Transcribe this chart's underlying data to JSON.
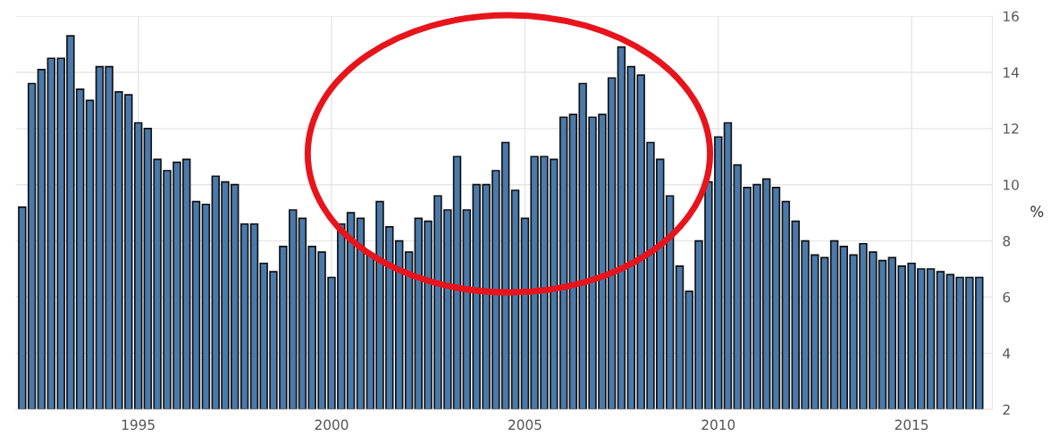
{
  "chart_data": {
    "type": "bar",
    "x": [
      "1992-01",
      "1992-04",
      "1992-07",
      "1992-10",
      "1993-01",
      "1993-04",
      "1993-07",
      "1993-10",
      "1994-01",
      "1994-04",
      "1994-07",
      "1994-10",
      "1995-01",
      "1995-04",
      "1995-07",
      "1995-10",
      "1996-01",
      "1996-04",
      "1996-07",
      "1996-10",
      "1997-01",
      "1997-04",
      "1997-07",
      "1997-10",
      "1998-01",
      "1998-04",
      "1998-07",
      "1998-10",
      "1999-01",
      "1999-04",
      "1999-07",
      "1999-10",
      "2000-01",
      "2000-04",
      "2000-07",
      "2000-10",
      "2001-01",
      "2001-04",
      "2001-07",
      "2001-10",
      "2002-01",
      "2002-04",
      "2002-07",
      "2002-10",
      "2003-01",
      "2003-04",
      "2003-07",
      "2003-10",
      "2004-01",
      "2004-04",
      "2004-07",
      "2004-10",
      "2005-01",
      "2005-04",
      "2005-07",
      "2005-10",
      "2006-01",
      "2006-04",
      "2006-07",
      "2006-10",
      "2007-01",
      "2007-04",
      "2007-07",
      "2007-10",
      "2008-01",
      "2008-04",
      "2008-07",
      "2008-10",
      "2009-01",
      "2009-04",
      "2009-07",
      "2009-10",
      "2010-01",
      "2010-04",
      "2010-07",
      "2010-10",
      "2011-01",
      "2011-04",
      "2011-07",
      "2011-10",
      "2012-01",
      "2012-04",
      "2012-07",
      "2012-10",
      "2013-01",
      "2013-04",
      "2013-07",
      "2013-10",
      "2014-01",
      "2014-04",
      "2014-07",
      "2014-10",
      "2015-01",
      "2015-04",
      "2015-07",
      "2015-10",
      "2016-01",
      "2016-04",
      "2016-07",
      "2016-10"
    ],
    "values": [
      9.2,
      13.6,
      14.1,
      14.5,
      14.5,
      15.3,
      13.4,
      13.0,
      14.2,
      14.2,
      13.3,
      13.2,
      12.2,
      12.0,
      10.9,
      10.5,
      10.8,
      10.9,
      9.4,
      9.3,
      10.3,
      10.1,
      10.0,
      8.6,
      8.6,
      7.2,
      6.9,
      7.8,
      9.1,
      8.8,
      7.8,
      7.6,
      6.7,
      8.6,
      9.0,
      8.8,
      7.5,
      9.4,
      8.5,
      8.0,
      7.6,
      8.8,
      8.7,
      9.6,
      9.1,
      11.0,
      9.1,
      10.0,
      10.0,
      10.5,
      11.5,
      9.8,
      8.8,
      11.0,
      11.0,
      10.9,
      12.4,
      12.5,
      13.6,
      12.4,
      12.5,
      13.8,
      14.9,
      14.2,
      13.9,
      11.5,
      10.9,
      9.6,
      7.1,
      6.2,
      8.0,
      10.1,
      11.7,
      12.2,
      10.7,
      9.9,
      10.0,
      10.2,
      9.9,
      9.4,
      8.7,
      8.0,
      7.5,
      7.4,
      8.0,
      7.8,
      7.5,
      7.9,
      7.6,
      7.3,
      7.4,
      7.1,
      7.2,
      7.0,
      7.0,
      6.9,
      6.8,
      6.7,
      6.7,
      6.7
    ],
    "color": "#4a7aab",
    "xlim": [
      "1991-11-01",
      "2017-02-01"
    ],
    "xticks": [
      {
        "value": "1995-01-01",
        "label": "1995"
      },
      {
        "value": "2000-01-01",
        "label": "2000"
      },
      {
        "value": "2005-01-01",
        "label": "2005"
      },
      {
        "value": "2010-01-01",
        "label": "2010"
      },
      {
        "value": "2015-01-01",
        "label": "2015"
      }
    ],
    "ylim": [
      2,
      16
    ],
    "yticks": [
      2,
      4,
      6,
      8,
      10,
      12,
      14,
      16
    ],
    "ylabel": "%",
    "grid": true
  }
}
